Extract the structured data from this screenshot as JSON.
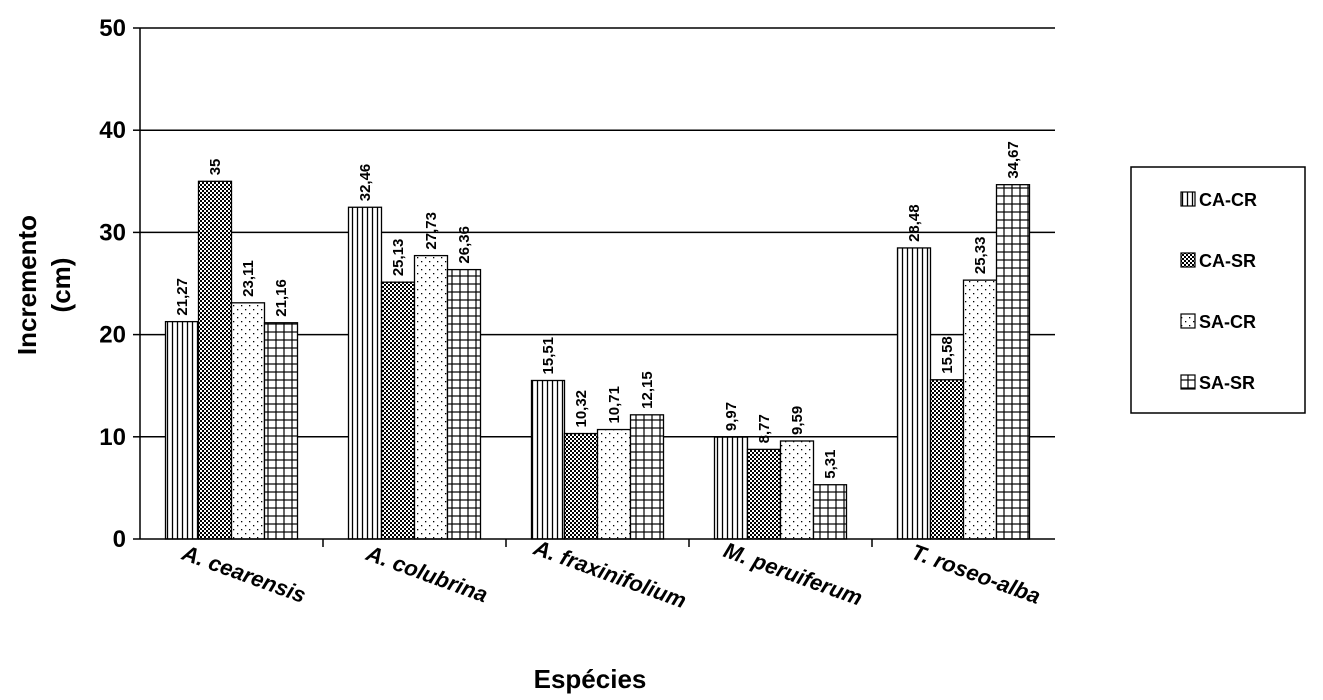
{
  "chart_data": {
    "type": "bar",
    "ylabel_lines": [
      "Incremento",
      "(cm)"
    ],
    "xlabel": "Espécies",
    "ylim": [
      0,
      50
    ],
    "yticks": [
      "0",
      "10",
      "20",
      "30",
      "40",
      "50"
    ],
    "grid": true,
    "legend_position": "right",
    "categories": [
      "A. cearensis",
      "A. colubrina",
      "A. fraxinifolium",
      "M. peruiferum",
      "T. roseo-alba"
    ],
    "series": [
      {
        "name": "CA-CR",
        "pattern": "vertical-lines",
        "values": [
          21.27,
          32.46,
          15.51,
          9.97,
          28.48
        ],
        "labels": [
          "21,27",
          "32,46",
          "15,51",
          "9,97",
          "28,48"
        ]
      },
      {
        "name": "CA-SR",
        "pattern": "dense-dots",
        "values": [
          35,
          25.13,
          10.32,
          8.77,
          15.58
        ],
        "labels": [
          "35",
          "25,13",
          "10,32",
          "8,77",
          "15,58"
        ]
      },
      {
        "name": "SA-CR",
        "pattern": "sparse-dots",
        "values": [
          23.11,
          27.73,
          10.71,
          9.59,
          25.33
        ],
        "labels": [
          "23,11",
          "27,73",
          "10,71",
          "9,59",
          "25,33"
        ]
      },
      {
        "name": "SA-SR",
        "pattern": "grid",
        "values": [
          21.16,
          26.36,
          12.15,
          5.31,
          34.67
        ],
        "labels": [
          "21,16",
          "26,36",
          "12,15",
          "5,31",
          "34,67"
        ]
      }
    ]
  }
}
